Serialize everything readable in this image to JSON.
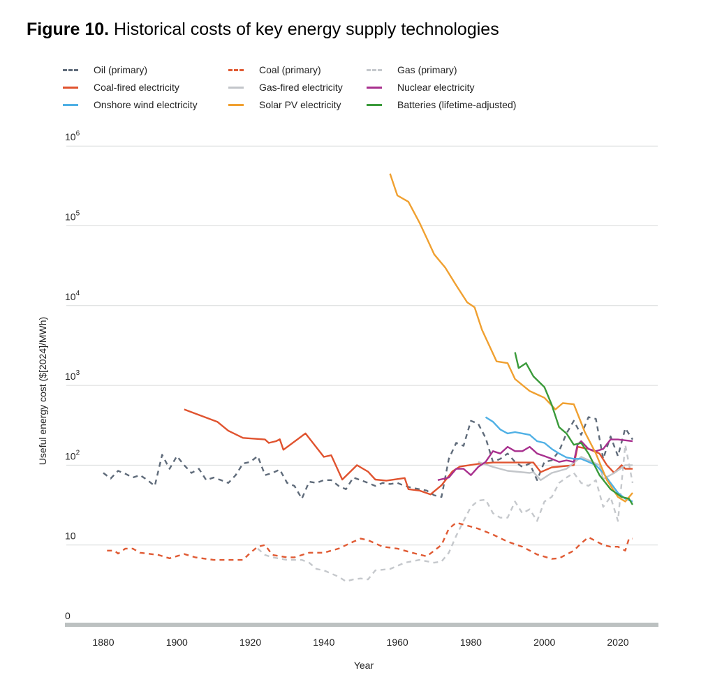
{
  "title": {
    "figure": "Figure 10.",
    "text": " Historical costs of key energy supply technologies"
  },
  "chart_data": {
    "type": "line",
    "title": "Figure 10. Historical costs of key energy supply technologies",
    "xlabel": "Year",
    "ylabel": "Useful energy cost ($[2024]/MWh)",
    "yscale": "log",
    "xlim": [
      1870,
      2030
    ],
    "ylim": [
      1,
      1000000
    ],
    "grid": "horizontal",
    "legend": "top",
    "x_ticks": [
      "1880",
      "1900",
      "1920",
      "1940",
      "1960",
      "1980",
      "2000",
      "2020"
    ],
    "y_ticks": [
      {
        "value": 1000000,
        "base": "10",
        "exp": "6"
      },
      {
        "value": 100000,
        "base": "10",
        "exp": "5"
      },
      {
        "value": 10000,
        "base": "10",
        "exp": "4"
      },
      {
        "value": 1000,
        "base": "10",
        "exp": "3"
      },
      {
        "value": 100,
        "base": "10",
        "exp": "2"
      },
      {
        "value": 10,
        "base": "10",
        "exp": ""
      },
      {
        "value": 1,
        "base": "0",
        "exp": ""
      }
    ],
    "series": [
      {
        "name": "Oil (primary)",
        "color": "#5f6b7a",
        "dashed": true,
        "x": [
          1880,
          1882,
          1884,
          1886,
          1888,
          1890,
          1892,
          1894,
          1896,
          1898,
          1900,
          1902,
          1904,
          1906,
          1908,
          1910,
          1912,
          1914,
          1916,
          1918,
          1920,
          1922,
          1924,
          1926,
          1928,
          1930,
          1932,
          1934,
          1936,
          1938,
          1940,
          1942,
          1944,
          1946,
          1948,
          1950,
          1952,
          1954,
          1956,
          1958,
          1960,
          1962,
          1964,
          1966,
          1968,
          1970,
          1972,
          1974,
          1976,
          1978,
          1980,
          1982,
          1984,
          1986,
          1988,
          1990,
          1992,
          1994,
          1996,
          1998,
          2000,
          2002,
          2004,
          2006,
          2008,
          2010,
          2012,
          2014,
          2016,
          2018,
          2020,
          2022,
          2024
        ],
        "y": [
          80,
          68,
          85,
          78,
          70,
          75,
          65,
          55,
          135,
          90,
          130,
          100,
          80,
          90,
          65,
          70,
          65,
          60,
          75,
          105,
          110,
          130,
          75,
          80,
          88,
          60,
          55,
          38,
          62,
          60,
          65,
          65,
          55,
          50,
          70,
          65,
          60,
          55,
          60,
          58,
          60,
          55,
          52,
          50,
          48,
          42,
          40,
          120,
          190,
          175,
          360,
          330,
          220,
          110,
          120,
          140,
          110,
          95,
          105,
          65,
          110,
          115,
          150,
          250,
          360,
          240,
          400,
          380,
          120,
          230,
          130,
          290,
          210
        ]
      },
      {
        "name": "Coal (primary)",
        "color": "#e05a33",
        "dashed": true,
        "x": [
          1881,
          1883,
          1884,
          1886,
          1888,
          1890,
          1895,
          1898,
          1902,
          1905,
          1910,
          1915,
          1918,
          1920,
          1922,
          1924,
          1926,
          1930,
          1932,
          1936,
          1940,
          1944,
          1948,
          1950,
          1952,
          1956,
          1960,
          1964,
          1968,
          1970,
          1972,
          1974,
          1976,
          1978,
          1980,
          1982,
          1986,
          1990,
          1994,
          1998,
          2002,
          2004,
          2008,
          2010,
          2012,
          2016,
          2018,
          2020,
          2022,
          2023,
          2024
        ],
        "y": [
          8.5,
          8.5,
          7.8,
          9,
          9,
          8,
          7.5,
          6.8,
          7.7,
          7,
          6.5,
          6.5,
          6.5,
          8,
          9.5,
          10,
          7.5,
          7,
          7,
          8,
          8,
          9,
          11,
          12,
          11.5,
          9.5,
          9,
          8,
          7.2,
          8.5,
          10,
          16,
          19,
          18,
          17,
          16,
          13.5,
          11,
          9.5,
          7.6,
          6.7,
          6.8,
          8.5,
          10.5,
          12.5,
          10,
          9.5,
          9.5,
          8.5,
          12,
          12
        ]
      },
      {
        "name": "Gas (primary)",
        "color": "#c5c8cc",
        "dashed": true,
        "x": [
          1922,
          1924,
          1926,
          1930,
          1934,
          1936,
          1938,
          1940,
          1944,
          1946,
          1948,
          1950,
          1952,
          1954,
          1958,
          1962,
          1966,
          1970,
          1972,
          1974,
          1976,
          1978,
          1980,
          1982,
          1984,
          1986,
          1988,
          1990,
          1992,
          1994,
          1996,
          1998,
          2000,
          2002,
          2004,
          2006,
          2008,
          2010,
          2012,
          2014,
          2016,
          2018,
          2020,
          2022,
          2024
        ],
        "y": [
          9,
          7.5,
          7,
          6.5,
          6.5,
          6,
          5,
          4.8,
          4,
          3.5,
          3.7,
          3.8,
          3.7,
          4.8,
          5,
          6,
          6.5,
          6,
          6.2,
          8,
          13,
          20,
          30,
          36,
          37,
          25,
          22,
          22,
          35,
          25,
          28,
          20,
          35,
          40,
          60,
          70,
          80,
          60,
          55,
          65,
          30,
          40,
          20,
          180,
          60
        ]
      },
      {
        "name": "Coal-fired electricity",
        "color": "#e0532f",
        "dashed": false,
        "x": [
          1902,
          1911,
          1914,
          1918,
          1924,
          1925,
          1927,
          1928,
          1929,
          1935,
          1940,
          1942,
          1945,
          1949,
          1952,
          1954,
          1957,
          1962,
          1963,
          1966,
          1969,
          1972,
          1975,
          1977,
          1982,
          1986,
          1997,
          1999,
          2002,
          2008,
          2009,
          2012,
          2015,
          2017,
          2019,
          2021,
          2022,
          2024
        ],
        "y": [
          500,
          350,
          270,
          220,
          210,
          190,
          200,
          211,
          156,
          250,
          127,
          133,
          66,
          100,
          83,
          66,
          64,
          69,
          50,
          48,
          43,
          56,
          84,
          96,
          104,
          108,
          108,
          82,
          94,
          100,
          170,
          160,
          140,
          100,
          80,
          100,
          90,
          90
        ]
      },
      {
        "name": "Gas-fired electricity",
        "color": "#c3c6ca",
        "dashed": false,
        "x": [
          1982,
          1986,
          1990,
          1996,
          1997,
          1999,
          2002,
          2006,
          2010,
          2013,
          2015,
          2016,
          2019,
          2022,
          2024
        ],
        "y": [
          110,
          95,
          85,
          80,
          82,
          65,
          80,
          90,
          127,
          110,
          100,
          67,
          80,
          100,
          100
        ]
      },
      {
        "name": "Nuclear electricity",
        "color": "#a8308e",
        "dashed": false,
        "x": [
          1971,
          1974,
          1976,
          1978,
          1980,
          1982,
          1984,
          1986,
          1988,
          1990,
          1992,
          1994,
          1996,
          1998,
          2000,
          2002,
          2004,
          2006,
          2008,
          2009,
          2010,
          2012,
          2014,
          2016,
          2018,
          2020,
          2022,
          2024
        ],
        "y": [
          65,
          70,
          90,
          90,
          75,
          95,
          110,
          150,
          140,
          170,
          150,
          150,
          170,
          140,
          130,
          120,
          110,
          115,
          110,
          180,
          200,
          160,
          150,
          160,
          210,
          210,
          205,
          200
        ]
      },
      {
        "name": "Onshore wind electricity",
        "color": "#4fb0e5",
        "dashed": false,
        "x": [
          1984,
          1986,
          1988,
          1990,
          1992,
          1994,
          1996,
          1998,
          2000,
          2002,
          2004,
          2006,
          2008,
          2010,
          2012,
          2014,
          2016,
          2018,
          2020,
          2022,
          2024
        ],
        "y": [
          400,
          350,
          280,
          250,
          260,
          250,
          240,
          200,
          190,
          160,
          140,
          125,
          120,
          120,
          110,
          100,
          80,
          60,
          45,
          38,
          35
        ]
      },
      {
        "name": "Solar PV electricity",
        "color": "#f0a030",
        "dashed": false,
        "x": [
          1958,
          1960,
          1963,
          1966,
          1968,
          1970,
          1973,
          1976,
          1979,
          1981,
          1983,
          1987,
          1990,
          1992,
          1996,
          2000,
          2003,
          2005,
          2008,
          2011,
          2014,
          2017,
          2020,
          2022,
          2024
        ],
        "y": [
          450000,
          240000,
          200000,
          110000,
          70000,
          44000,
          30000,
          18000,
          11000,
          9500,
          5000,
          2000,
          1900,
          1200,
          850,
          700,
          500,
          600,
          580,
          260,
          140,
          65,
          40,
          35,
          45
        ]
      },
      {
        "name": "Batteries (lifetime-adjusted)",
        "color": "#3a9a3a",
        "dashed": false,
        "x": [
          1992,
          1993,
          1995,
          1997,
          2000,
          2002,
          2004,
          2006,
          2008,
          2010,
          2012,
          2015,
          2018,
          2021,
          2023,
          2024
        ],
        "y": [
          2600,
          1650,
          1900,
          1300,
          950,
          570,
          300,
          250,
          180,
          190,
          140,
          75,
          50,
          40,
          38,
          32
        ]
      }
    ]
  }
}
